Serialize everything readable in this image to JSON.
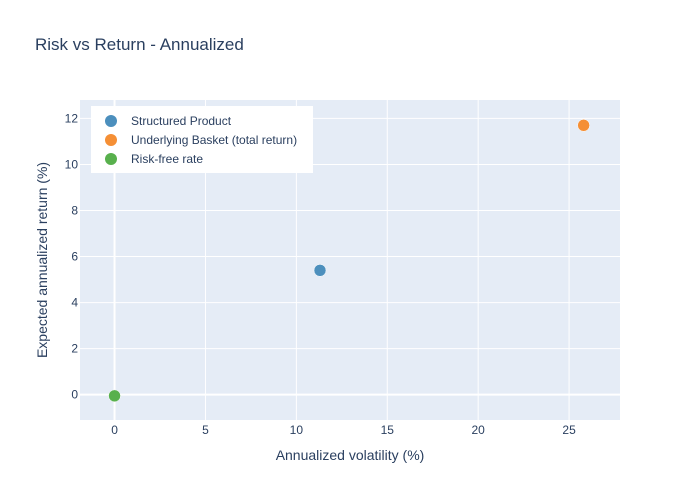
{
  "chart_data": {
    "type": "scatter",
    "title": "Risk vs Return - Annualized",
    "xlabel": "Annualized volatility (%)",
    "ylabel": "Expected annualized return (%)",
    "xlim": [
      -1.9,
      27.8
    ],
    "ylim": [
      -1.1,
      12.8
    ],
    "xticks": [
      0,
      5,
      10,
      15,
      20,
      25
    ],
    "yticks": [
      0,
      2,
      4,
      6,
      8,
      10,
      12
    ],
    "grid": true,
    "legend_position": "top-left",
    "background_color": "#e5ecf6",
    "series": [
      {
        "name": "Structured Product",
        "x": [
          11.3
        ],
        "y": [
          5.4
        ],
        "color": "#4c8fbd"
      },
      {
        "name": "Underlying Basket (total return)",
        "x": [
          25.8
        ],
        "y": [
          11.7
        ],
        "color": "#f58f35"
      },
      {
        "name": "Risk-free rate",
        "x": [
          0
        ],
        "y": [
          -0.05
        ],
        "color": "#58b04d"
      }
    ]
  }
}
